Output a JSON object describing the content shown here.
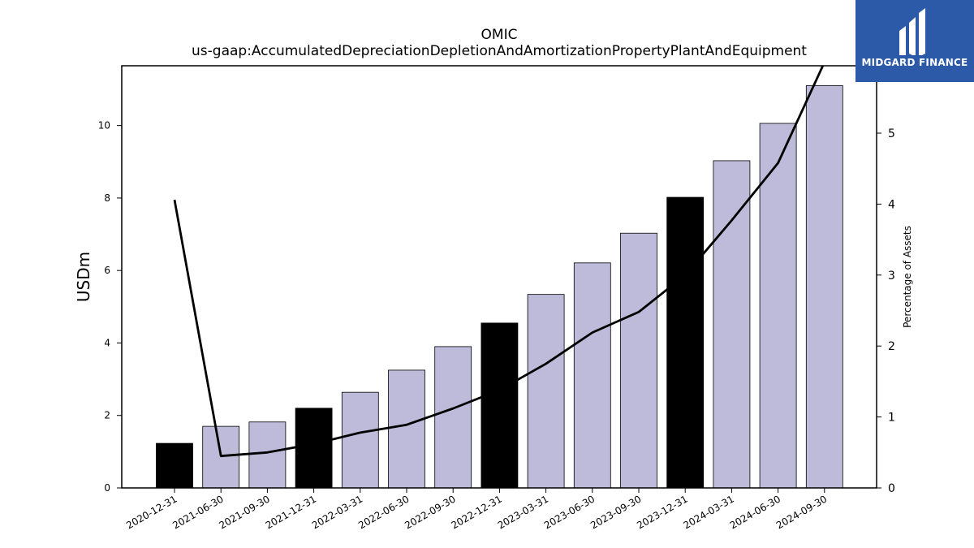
{
  "chart_data": {
    "type": "bar",
    "title": "OMIC",
    "subtitle": "us-gaap:AccumulatedDepreciationDepletionAndAmortizationPropertyPlantAndEquipment",
    "ylabel": "USDm",
    "y2label": "Percentage of Assets",
    "ylim": [
      0,
      11.65
    ],
    "y2lim": [
      0,
      5.95
    ],
    "yticks": [
      0,
      2,
      4,
      6,
      8,
      10
    ],
    "y2ticks": [
      0,
      1,
      2,
      3,
      4,
      5
    ],
    "grid": false,
    "categories": [
      "2020-12-31",
      "2021-06-30",
      "2021-09-30",
      "2021-12-31",
      "2022-03-31",
      "2022-06-30",
      "2022-09-30",
      "2022-12-31",
      "2023-03-31",
      "2023-06-30",
      "2023-09-30",
      "2023-12-31",
      "2024-03-31",
      "2024-06-30",
      "2024-09-30"
    ],
    "series": [
      {
        "type": "bar",
        "axis": "left",
        "values": [
          1.23,
          1.7,
          1.82,
          2.2,
          2.64,
          3.25,
          3.9,
          4.55,
          5.34,
          6.21,
          7.03,
          8.02,
          9.03,
          10.06,
          11.1
        ],
        "colors": [
          "#000000",
          "#bdbbd9",
          "#bdbbd9",
          "#000000",
          "#bdbbd9",
          "#bdbbd9",
          "#bdbbd9",
          "#000000",
          "#bdbbd9",
          "#bdbbd9",
          "#bdbbd9",
          "#000000",
          "#bdbbd9",
          "#bdbbd9",
          "#bdbbd9"
        ]
      },
      {
        "type": "line",
        "axis": "right",
        "color": "#000000",
        "values": [
          4.06,
          0.45,
          0.5,
          0.62,
          0.78,
          0.89,
          1.12,
          1.38,
          1.75,
          2.19,
          2.48,
          3.0,
          3.77,
          4.58,
          6.0
        ]
      }
    ]
  },
  "logo": {
    "text": "MIDGARD FINANCE",
    "background": "#2d5aa8"
  }
}
